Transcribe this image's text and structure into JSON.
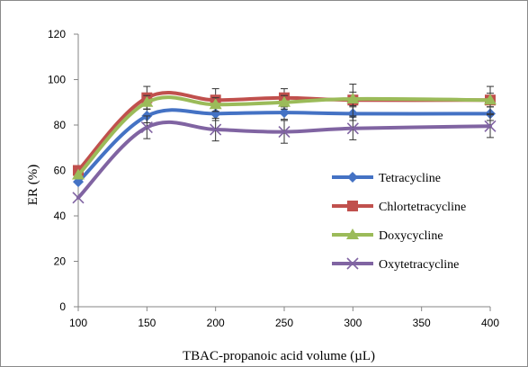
{
  "chart_data": {
    "type": "line",
    "title": "",
    "xlabel": "TBAC-propanoic acid volume (µL)",
    "ylabel": "ER (%)",
    "xlim": [
      100,
      400
    ],
    "ylim": [
      0,
      120
    ],
    "xticks": [
      100,
      150,
      200,
      250,
      300,
      350,
      400
    ],
    "yticks": [
      0,
      20,
      40,
      60,
      80,
      100,
      120
    ],
    "grid": false,
    "legend_position": "right",
    "x": [
      100,
      150,
      200,
      250,
      300,
      400
    ],
    "series": [
      {
        "name": "Tetracycline",
        "color": "#4472C4",
        "marker": "diamond",
        "values": [
          55,
          84,
          85,
          85.5,
          85,
          85
        ],
        "error": [
          0,
          3,
          3,
          3,
          3,
          3
        ]
      },
      {
        "name": "Chlortetracycline",
        "color": "#C0504D",
        "marker": "square",
        "values": [
          60,
          92,
          91,
          92,
          91,
          91
        ],
        "error": [
          0,
          5,
          5,
          4,
          7,
          6
        ]
      },
      {
        "name": "Doxycycline",
        "color": "#9BBB59",
        "marker": "triangle",
        "values": [
          58,
          90,
          89,
          90,
          91.5,
          91
        ],
        "error": [
          0,
          3,
          3,
          3,
          3,
          3
        ]
      },
      {
        "name": "Oxytetracycline",
        "color": "#8064A2",
        "marker": "x",
        "values": [
          48,
          79,
          78,
          77,
          78.5,
          79.5
        ],
        "error": [
          0,
          5,
          5,
          5,
          5,
          5
        ]
      }
    ]
  }
}
